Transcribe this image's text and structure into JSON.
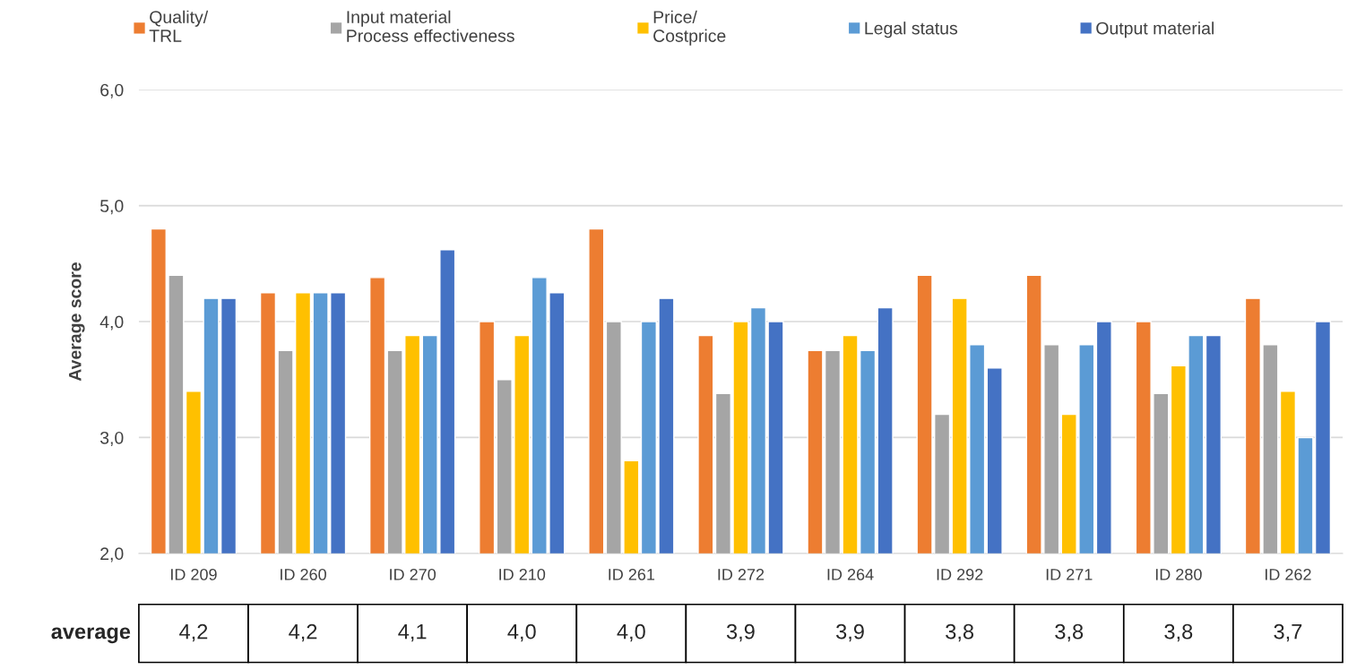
{
  "chart_data": {
    "type": "bar",
    "ylabel": "Average score",
    "categories": [
      "ID 209",
      "ID 260",
      "ID 270",
      "ID 210",
      "ID 261",
      "ID 272",
      "ID 264",
      "ID 292",
      "ID 271",
      "ID 280",
      "ID 262"
    ],
    "series": [
      {
        "name": "Quality/\nTRL",
        "color": "#ed7d31",
        "values": [
          4.8,
          4.25,
          4.38,
          4.0,
          4.8,
          3.88,
          3.75,
          4.4,
          4.4,
          4.0,
          4.2
        ]
      },
      {
        "name": "Input material\nProcess effectiveness",
        "color": "#a5a5a5",
        "values": [
          4.4,
          3.75,
          3.75,
          3.5,
          4.0,
          3.38,
          3.75,
          3.2,
          3.8,
          3.38,
          3.8
        ]
      },
      {
        "name": "Price/\nCostprice",
        "color": "#ffc000",
        "values": [
          3.4,
          4.25,
          3.88,
          3.88,
          2.8,
          4.0,
          3.88,
          4.2,
          3.2,
          3.62,
          3.4
        ]
      },
      {
        "name": "Legal status",
        "color": "#5b9bd5",
        "values": [
          4.2,
          4.25,
          3.88,
          4.38,
          4.0,
          4.12,
          3.75,
          3.8,
          3.8,
          3.88,
          3.0
        ]
      },
      {
        "name": "Output material",
        "color": "#4472c4",
        "values": [
          4.2,
          4.25,
          4.62,
          4.25,
          4.2,
          4.0,
          4.12,
          3.6,
          4.0,
          3.88,
          4.0
        ]
      }
    ],
    "ylim": [
      2,
      6
    ],
    "yticks": [
      {
        "value": 2,
        "label": "2,0"
      },
      {
        "value": 3,
        "label": "3,0"
      },
      {
        "value": 4,
        "label": "4,0"
      },
      {
        "value": 5,
        "label": "5,0"
      },
      {
        "value": 6,
        "label": "6,0"
      }
    ],
    "grid": "y",
    "legend": "top",
    "annotations": [
      "average",
      "4,2",
      "4,2",
      "4,1",
      "4,0",
      "4,0",
      "3,9",
      "3,9",
      "3,8",
      "3,8",
      "3,8",
      "3,7"
    ]
  }
}
